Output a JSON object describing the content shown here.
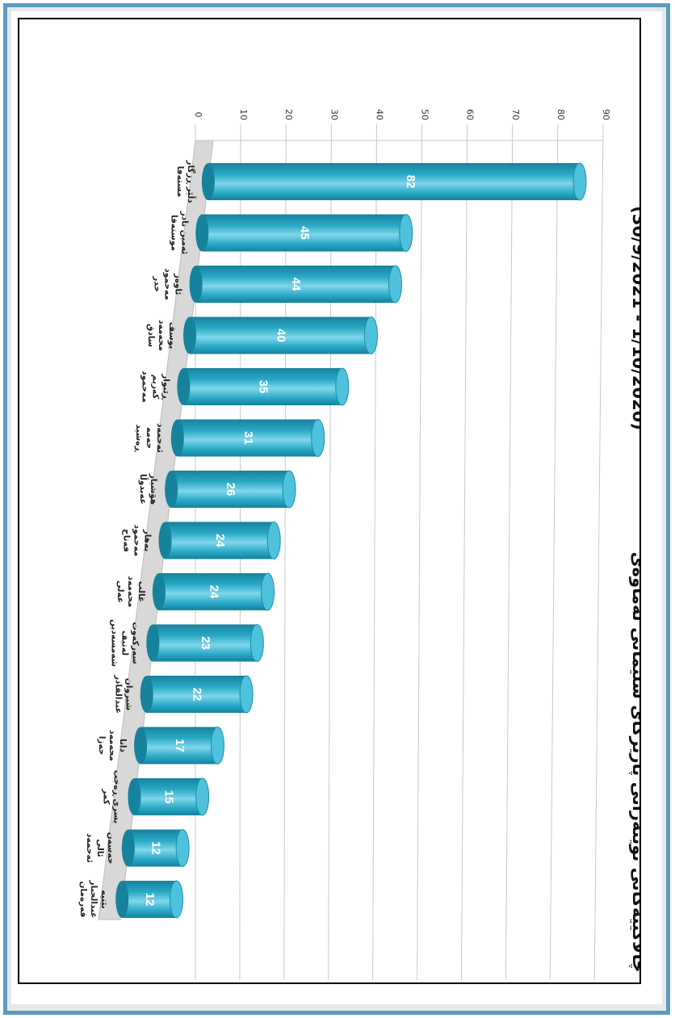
{
  "title": "چالاکییەکانی نوێنەرانی پارێزگای سلێمانی لەماوەی",
  "subtitle": "(30/9/2021 - 1/10/2020)",
  "colors": {
    "bar": "#29a9c6",
    "bar_dark": "#16829c",
    "bar_light": "#7fd6ea",
    "frame": "#5b9cc0"
  },
  "chart_data": {
    "type": "bar",
    "title": "چالاکییەکانی نوێنەرانی پارێزگای سلێمانی لەماوەی (30/9/2021 - 1/10/2020)",
    "xlabel": "",
    "ylabel": "",
    "ylim": [
      0,
      90
    ],
    "ticks": [
      "0",
      "10",
      "20",
      "30",
      "40",
      "50",
      "60",
      "70",
      "80",
      "90"
    ],
    "tick_values": [
      0,
      10,
      20,
      30,
      40,
      50,
      60,
      70,
      80,
      90
    ],
    "grid": true,
    "categories": [
      [
        "دڵێر ڕزگار",
        "مستەفا"
      ],
      [
        "ئەمین نادر",
        "موستەفا"
      ],
      [
        "ئاوەز",
        "مەحمود",
        "خدر"
      ],
      [
        "یوسف",
        "محەمەد",
        "سادق"
      ],
      [
        "ڕێبوار",
        "کەریم",
        "مەحمود"
      ],
      [
        "ئەحمەد",
        "حەمە",
        "ڕەشید"
      ],
      [
        "هۆشیار",
        "عەبدوڵا"
      ],
      [
        "بەهار",
        "مەحمود",
        "فەتاح"
      ],
      [
        "غالب",
        "محەمەد",
        "عەلی"
      ],
      [
        "سەرکەوت",
        "لەتیف",
        "شەمسەدین"
      ],
      [
        "شیروان",
        "عبدالقادر"
      ],
      [
        "دانا",
        "محەمەد",
        "حەزا"
      ],
      [
        "یسری ڕەجب",
        "کمر"
      ],
      [
        "حەسەن",
        "ئالی",
        "ئەحمەد"
      ],
      [
        "بێنیە",
        "عبدالجبار",
        "قەرەمان"
      ]
    ],
    "values": [
      82,
      45,
      44,
      40,
      35,
      31,
      26,
      24,
      24,
      23,
      22,
      17,
      15,
      12,
      12
    ]
  }
}
